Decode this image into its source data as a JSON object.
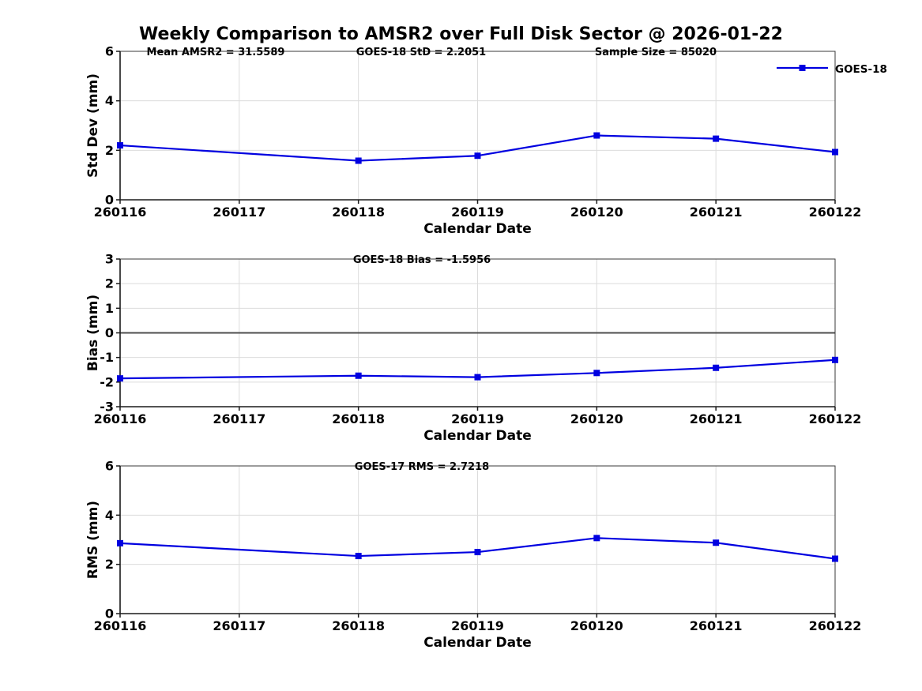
{
  "page": {
    "title": "Weekly Comparison to AMSR2 over Full Disk Sector @ 2026-01-22"
  },
  "legend": {
    "label": "GOES-18"
  },
  "colors": {
    "line": "#0000e0",
    "marker": "#0000e0",
    "grid": "#dcdcdc",
    "spine": "#3a3a3a",
    "axis": "#1a1a1a",
    "zero_line": "#4d4d4d",
    "text": "#000000",
    "background": "#ffffff"
  },
  "chart_data": [
    {
      "type": "line",
      "name": "std-dev",
      "annotations": [
        "Mean AMSR2 = 31.5589",
        "GOES-18 StD = 2.2051",
        "Sample Size = 85020"
      ],
      "xlabel": "Calendar Date",
      "ylabel": "Std Dev (mm)",
      "xlim": [
        260116,
        260122
      ],
      "ylim": [
        0,
        6
      ],
      "yticks": [
        0,
        2,
        4,
        6
      ],
      "xticks": [
        "260116",
        "260117",
        "260118",
        "260119",
        "260120",
        "260121",
        "260122"
      ],
      "series": [
        {
          "name": "GOES-18",
          "x": [
            260116,
            260118,
            260119,
            260120,
            260121,
            260122
          ],
          "y": [
            2.2,
            1.58,
            1.78,
            2.6,
            2.47,
            1.93
          ]
        }
      ],
      "legend": true,
      "zero_line": false
    },
    {
      "type": "line",
      "name": "bias",
      "annotations": [
        "GOES-18 Bias  = -1.5956"
      ],
      "xlabel": "Calendar Date",
      "ylabel": "Bias (mm)",
      "xlim": [
        260116,
        260122
      ],
      "ylim": [
        -3,
        3
      ],
      "yticks": [
        3,
        2,
        1,
        0,
        -1,
        -2,
        -3
      ],
      "xticks": [
        "260116",
        "260117",
        "260118",
        "260119",
        "260120",
        "260121",
        "260122"
      ],
      "series": [
        {
          "name": "GOES-18",
          "x": [
            260116,
            260118,
            260119,
            260120,
            260121,
            260122
          ],
          "y": [
            -1.85,
            -1.74,
            -1.8,
            -1.63,
            -1.42,
            -1.1
          ]
        }
      ],
      "legend": false,
      "zero_line": true
    },
    {
      "type": "line",
      "name": "rms",
      "annotations": [
        "GOES-17 RMS = 2.7218"
      ],
      "xlabel": "Calendar Date",
      "ylabel": "RMS (mm)",
      "xlim": [
        260116,
        260122
      ],
      "ylim": [
        0,
        6
      ],
      "yticks": [
        0,
        2,
        4,
        6
      ],
      "xticks": [
        "260116",
        "260117",
        "260118",
        "260119",
        "260120",
        "260121",
        "260122"
      ],
      "series": [
        {
          "name": "GOES-18",
          "x": [
            260116,
            260118,
            260119,
            260120,
            260121,
            260122
          ],
          "y": [
            2.86,
            2.34,
            2.5,
            3.07,
            2.88,
            2.23
          ]
        }
      ],
      "legend": false,
      "zero_line": false
    }
  ]
}
